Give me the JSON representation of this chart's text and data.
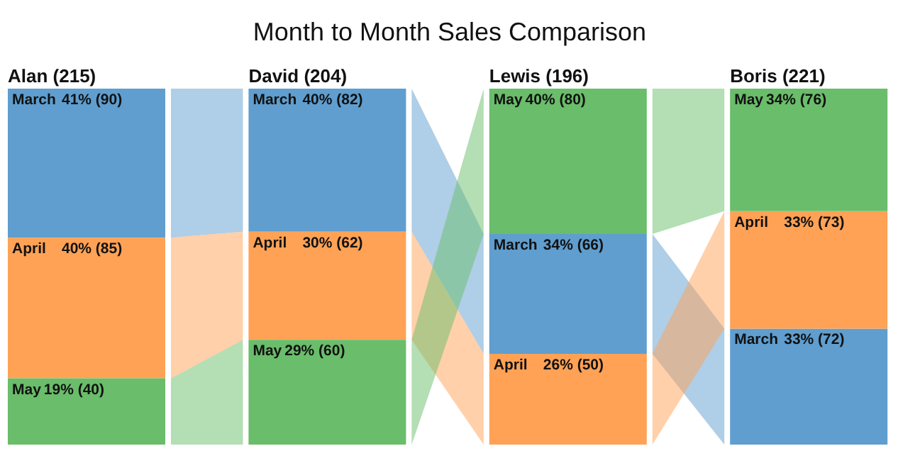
{
  "chart_data": {
    "type": "other",
    "title": "Month to Month Sales Comparison",
    "categories": [
      "Alan (215)",
      "David (204)",
      "Lewis (196)",
      "Boris (221)"
    ],
    "series": [
      {
        "name": "March",
        "color": "#5f9ecf",
        "values": [
          90,
          82,
          66,
          72
        ],
        "value_labels": [
          "41% (90)",
          "40% (82)",
          "34% (66)",
          "33% (72)"
        ]
      },
      {
        "name": "April",
        "color": "#ffa255",
        "values": [
          85,
          62,
          50,
          73
        ],
        "value_labels": [
          "40% (85)",
          "30% (62)",
          "26% (50)",
          "33% (73)"
        ]
      },
      {
        "name": "May",
        "color": "#6abd6a",
        "values": [
          40,
          60,
          80,
          76
        ],
        "value_labels": [
          "19% (40)",
          "29% (60)",
          "40% (80)",
          "34% (76)"
        ]
      }
    ]
  }
}
